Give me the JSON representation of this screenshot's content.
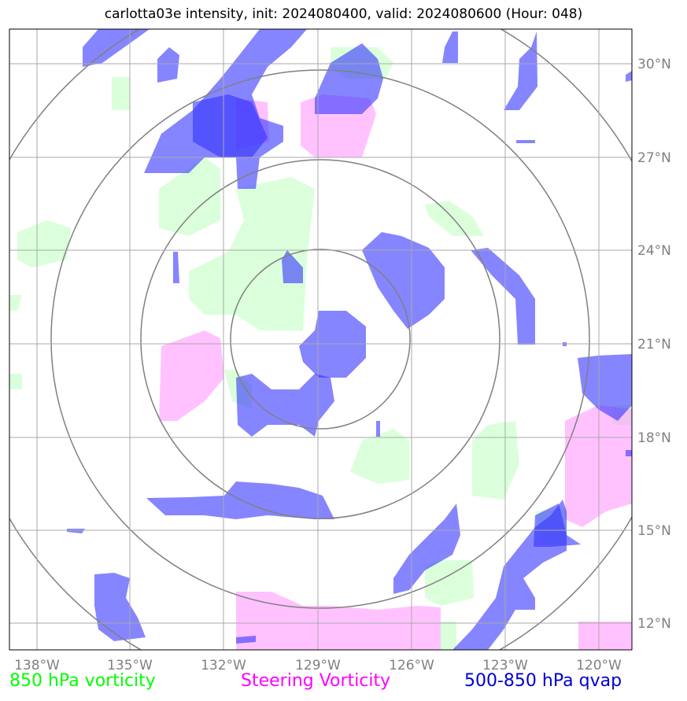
{
  "title": "carlotta03e intensity, init: 2024080400, valid: 2024080600 (Hour: 048)",
  "map": {
    "lon_labels": [
      "138°W",
      "135°W",
      "132°W",
      "129°W",
      "126°W",
      "123°W",
      "120°W"
    ],
    "lat_labels": [
      "30°N",
      "27°N",
      "24°N",
      "21°N",
      "18°N",
      "15°N",
      "12°N"
    ],
    "colors": {
      "vorticity_850": "#ccffcc",
      "steering_vorticity": "#ff99ff",
      "qvap": "#3333ff",
      "rings": "#808080",
      "grid": "#a9a9a9"
    }
  },
  "legend": {
    "vort850": "850 hPa vorticity",
    "steering": "Steering Vorticity",
    "qvap": "500-850 hPa qvap"
  }
}
